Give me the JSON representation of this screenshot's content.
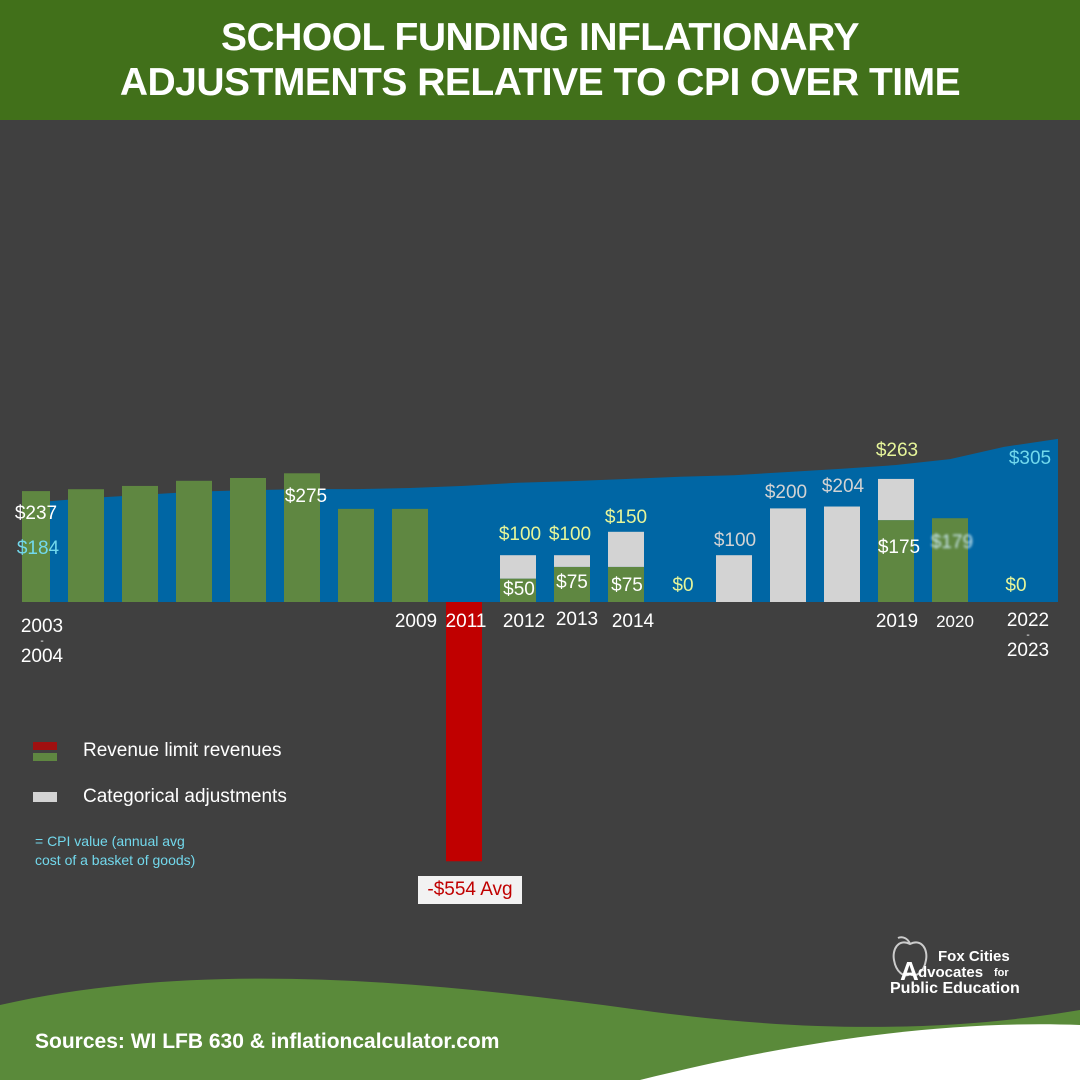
{
  "header": {
    "title_line1": "SCHOOL FUNDING INFLATIONARY",
    "title_line2": "ADJUSTMENTS RELATIVE TO CPI OVER TIME"
  },
  "colors": {
    "header_bg": "#41701a",
    "background": "#404040",
    "revenue_positive": "#5f8741",
    "revenue_negative": "#c00000",
    "categorical": "#d3d3d3",
    "cpi_area": "#0066a4",
    "cpi_text": "#72d8ec",
    "total_text": "#e6f59a"
  },
  "chart_data": {
    "type": "bar",
    "stacked": true,
    "categories": [
      "2003\n-\n2004",
      "",
      "",
      "",
      "",
      "",
      "",
      "2009",
      "2011",
      "2012",
      "2013",
      "2014",
      "",
      "",
      "",
      "",
      "2019",
      "2020",
      "2022\n-\n2023",
      ""
    ],
    "series": [
      {
        "name": "Revenue limit revenues",
        "values": [
          237,
          241,
          248,
          259,
          265,
          275,
          199,
          199,
          -554,
          50,
          75,
          75,
          0,
          0,
          0,
          0,
          175,
          179,
          0,
          null
        ]
      },
      {
        "name": "Categorical adjustments",
        "values": [
          0,
          0,
          0,
          0,
          0,
          0,
          0,
          0,
          0,
          50,
          25,
          75,
          0,
          100,
          200,
          204,
          88,
          0,
          0,
          null
        ]
      },
      {
        "name": "= CPI value (annual avg cost of a basket of goods)",
        "type": "area",
        "values": [
          184,
          194,
          200,
          206,
          209,
          211,
          211,
          213,
          217,
          223,
          226,
          230,
          234,
          237,
          243,
          249,
          256,
          267,
          290,
          305
        ]
      }
    ],
    "data_labels": [
      {
        "text": "$237",
        "style": "w"
      },
      {
        "text": "$184",
        "style": "c"
      },
      {
        "text": "$275",
        "style": "w"
      },
      {
        "text": "$100",
        "style": "y"
      },
      {
        "text": "$50",
        "style": "w"
      },
      {
        "text": "$100",
        "style": "y"
      },
      {
        "text": "$75",
        "style": "w"
      },
      {
        "text": "$150",
        "style": "y"
      },
      {
        "text": "$75",
        "style": "w"
      },
      {
        "text": "$0",
        "style": "y"
      },
      {
        "text": "$100",
        "style": "g"
      },
      {
        "text": "$200",
        "style": "g"
      },
      {
        "text": "$204",
        "style": "g"
      },
      {
        "text": "$263",
        "style": "y"
      },
      {
        "text": "$175",
        "style": "w"
      },
      {
        "text": "$179",
        "style": "blur"
      },
      {
        "text": "$0",
        "style": "y"
      },
      {
        "text": "$305",
        "style": "c"
      }
    ],
    "annotation": "-$554 Avg",
    "grid": false,
    "legend_position": "bottom-left"
  },
  "legend": {
    "revenue": "Revenue limit revenues",
    "categorical": "Categorical adjustments",
    "cpi_line1": "= CPI value (annual avg",
    "cpi_line2": "cost of a basket of goods)"
  },
  "logo": {
    "line1": "Fox Cities",
    "line2a": "A",
    "line2b": "dvocates",
    "line2c": "for",
    "line3": "Public Education"
  },
  "footer": {
    "sources": "Sources: WI LFB 630 & inflationcalculator.com"
  }
}
